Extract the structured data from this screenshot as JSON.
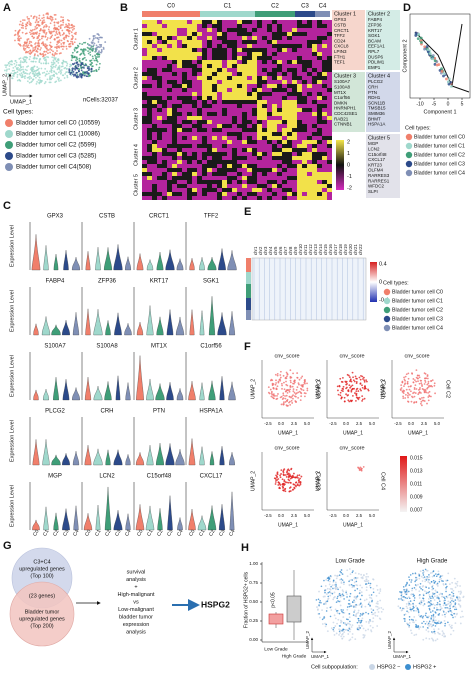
{
  "A": {
    "label": "A",
    "umap_x": "UMAP_1",
    "umap_y": "UMAP_2",
    "n_cells": "nCells:32037",
    "legend_title": "Cell types:",
    "legend": [
      {
        "text": "Bladder tumor cell C0 (10559)",
        "color": "#f07f6b"
      },
      {
        "text": "Bladder tumor cell C1 (10086)",
        "color": "#9fd8cc"
      },
      {
        "text": "Bladder tumor cell C2 (5599)",
        "color": "#3f9e78"
      },
      {
        "text": "Bladder tumor cell C3 (5285)",
        "color": "#2c4a8a"
      },
      {
        "text": "Bladder tumor cell C4(508)",
        "color": "#7f8fb5"
      }
    ]
  },
  "B": {
    "label": "B",
    "top_labels": [
      "C0",
      "C1",
      "C2",
      "C3",
      "C4"
    ],
    "row_labels": [
      "Cluster 1",
      "Cluster 2",
      "Cluster 3",
      "Cluster 4",
      "Cluster 5"
    ],
    "gene_boxes": [
      {
        "title": "Cluster 1",
        "genes": [
          "GPX3",
          "CSTB",
          "CRCT1",
          "TFF2",
          "CD24",
          "CXCL8",
          "LPIN3",
          "FTH1",
          "TEF1"
        ],
        "color": "#f6d6cc"
      },
      {
        "title": "Cluster 2",
        "genes": [
          "FABP4",
          "ZFP36",
          "KRT17",
          "SGK1",
          "BCAM",
          "EEF1A1",
          "RPL7",
          "DUSP6",
          "PDLIM1",
          "EMP1"
        ],
        "color": "#d4ece6"
      },
      {
        "title": "Cluster 3",
        "genes": [
          "S100A7",
          "S100A8",
          "MT1X",
          "C1orf56",
          "DMKN",
          "HNRNPH1",
          "CDC42SE1",
          "RAB21",
          "CTNNB1"
        ],
        "color": "#d2e6d8"
      },
      {
        "title": "Cluster 4",
        "genes": [
          "PLCG2",
          "CRH",
          "PTN",
          "RDH1",
          "SCN11B",
          "TMSB15",
          "SMIM36",
          "BHMT",
          "HSPA1A"
        ],
        "color": "#d2d8ea"
      },
      {
        "title": "Cluster 5",
        "genes": [
          "MGP",
          "LCN2",
          "C15orf48",
          "CXCL17",
          "KRT23",
          "OLFM4",
          "RARRES3",
          "RARRES1",
          "WFDC2",
          "SLPI"
        ],
        "color": "#e2e2ea"
      }
    ],
    "scale_ticks": [
      "2",
      "1",
      "0",
      "-1",
      "-2"
    ]
  },
  "C": {
    "label": "C",
    "y_label": "Expression Level",
    "genes": [
      "GPX3",
      "CSTB",
      "CRCT1",
      "TFF2",
      "FABP4",
      "ZFP36",
      "KRT17",
      "SGK1",
      "S100A7",
      "S100A8",
      "MT1X",
      "C1orf56",
      "PLCG2",
      "CRH",
      "PTN",
      "HSPA1A",
      "MGP",
      "LCN2",
      "C15orf48",
      "CXCL17"
    ],
    "x_labels": [
      "C0",
      "C1",
      "C2",
      "C3",
      "C4"
    ]
  },
  "D": {
    "label": "D",
    "x_label": "Component 1",
    "y_label": "Component 2",
    "x_ticks": [
      "-10",
      "-5",
      "0",
      "5"
    ],
    "legend_title": "Cell types:",
    "legend": [
      "Bladder tumor cell C0",
      "Bladder tumor cell C1",
      "Bladder tumor cell C2",
      "Bladder tumor cell C3",
      "Bladder tumor cell C4"
    ]
  },
  "E": {
    "label": "E",
    "chromosomes": [
      "chr1",
      "chr2",
      "chr3",
      "chr4",
      "chr5",
      "chr6",
      "chr7",
      "chr8",
      "chr9",
      "chr10",
      "chr11",
      "chr12",
      "chr13",
      "chr14",
      "chr15",
      "chr16",
      "chr17",
      "chr18",
      "chr19",
      "chr20",
      "chr21",
      "chr22"
    ],
    "scale_ticks": [
      "0.4",
      "0",
      "-0.4"
    ],
    "legend_title": "Cell types:",
    "legend": [
      "Bladder tumor cell C0",
      "Bladder tumor cell C1",
      "Bladder tumor cell C2",
      "Bladder tumor cell C3",
      "Bladder tumor cell C4"
    ]
  },
  "F": {
    "label": "F",
    "panel_title": "cnv_score",
    "x_label": "UMAP_1",
    "y_label": "UMAP_2",
    "cells": [
      "Cell C0",
      "Cell C1",
      "Cell C2",
      "Cell C3",
      "Cell C4"
    ],
    "x_ticks": [
      "-2.5",
      "0.0",
      "2.5",
      "5.0"
    ],
    "scale_ticks": [
      "0.015",
      "0.013",
      "0.011",
      "0.009",
      "0.007"
    ]
  },
  "G": {
    "label": "G",
    "circle_top": [
      "C3+C4",
      "upregulated genes",
      "(Top 100)"
    ],
    "overlap": "(23 genes)",
    "circle_bottom": [
      "Bladder tumor",
      "upregulated genes",
      "(Top 200)"
    ],
    "analysis": [
      "survival",
      "analysis",
      "+",
      "High-malignant",
      "vs",
      "Low-malignant",
      "bladder tumor",
      "expression",
      "analysis"
    ],
    "result": "HSPG2"
  },
  "H": {
    "label": "H",
    "y_label": "Fraction of HSPG2+ cells",
    "y_ticks": [
      "0.00",
      "0.25",
      "0.50",
      "0.75",
      "1.00"
    ],
    "groups": [
      "Low Grade",
      "High Grade"
    ],
    "p_value": "p<0.05",
    "umap_titles": [
      "Low Grade",
      "High Grade"
    ],
    "umap_x": "UMAP_1",
    "umap_y": "UMAP_2",
    "legend_title": "Cell subpopulation:",
    "legend": [
      "HSPG2 −",
      "HSPG2 +"
    ]
  }
}
